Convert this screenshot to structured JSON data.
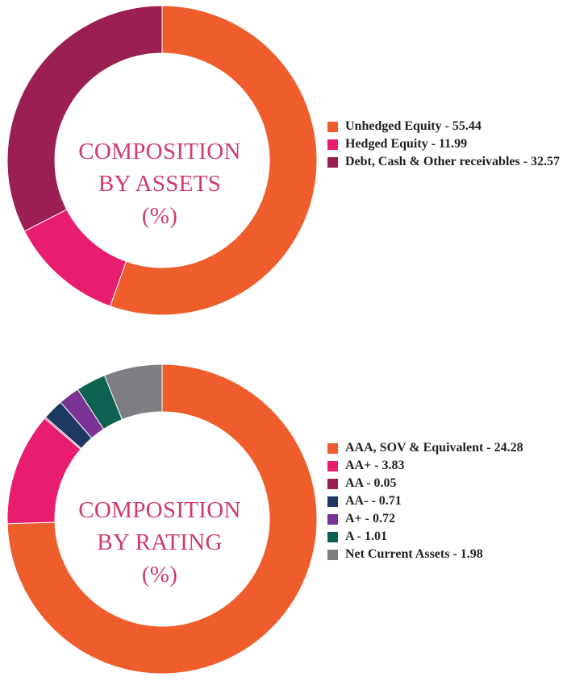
{
  "chart_data": [
    {
      "type": "pie",
      "title": "COMPOSITION BY ASSETS (%)",
      "title_lines": [
        "COMPOSITION",
        "BY ASSETS",
        "(%)"
      ],
      "legend_position": "right",
      "slices": [
        {
          "label": "Unhedged Equity - 55.44",
          "value": 55.44,
          "color": "#ee5d2b"
        },
        {
          "label": "Hedged Equity - 11.99",
          "value": 11.99,
          "color": "#e91d70"
        },
        {
          "label": "Debt, Cash & Other receivables - 32.57",
          "value": 32.57,
          "color": "#9b1f52"
        }
      ]
    },
    {
      "type": "pie",
      "title": "COMPOSITION BY RATING (%)",
      "title_lines": [
        "COMPOSITION",
        "BY RATING",
        "(%)"
      ],
      "legend_position": "right",
      "slices": [
        {
          "label": "AAA, SOV & Equivalent - 24.28",
          "value": 24.28,
          "color": "#ee5d2b"
        },
        {
          "label": "AA+ - 3.83",
          "value": 3.83,
          "color": "#e91d70"
        },
        {
          "label": "AA - 0.05",
          "value": 0.05,
          "color": "#9b1f52"
        },
        {
          "label": "AA- - 0.71",
          "value": 0.71,
          "color": "#1d3961"
        },
        {
          "label": "A+ - 0.72",
          "value": 0.72,
          "color": "#7a3294"
        },
        {
          "label": "A - 1.01",
          "value": 1.01,
          "color": "#0c6150"
        },
        {
          "label": "Net Current Assets - 1.98",
          "value": 1.98,
          "color": "#7d7d82"
        }
      ]
    }
  ]
}
